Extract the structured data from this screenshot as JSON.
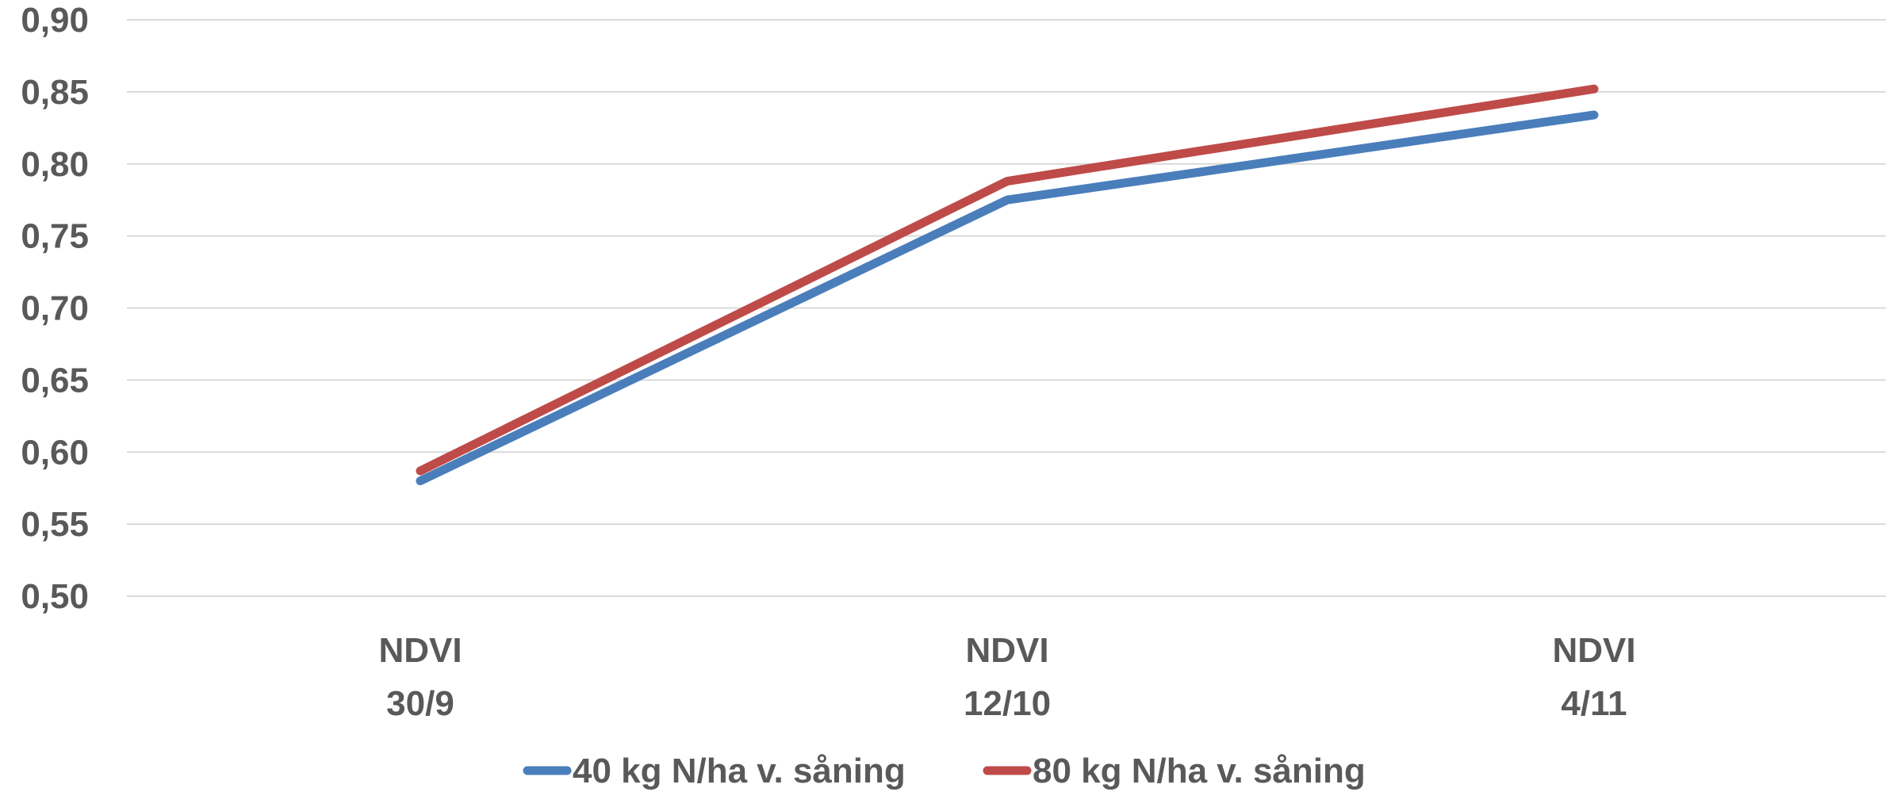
{
  "chart_data": {
    "type": "line",
    "title": "",
    "xlabel": "",
    "ylabel": "",
    "categories": [
      [
        "NDVI",
        "30/9"
      ],
      [
        "NDVI",
        "12/10"
      ],
      [
        "NDVI",
        "4/11"
      ]
    ],
    "series": [
      {
        "name": "40 kg N/ha v. såning",
        "color": "#4a7ebb",
        "values": [
          0.58,
          0.775,
          0.834
        ]
      },
      {
        "name": "80 kg N/ha v. såning",
        "color": "#be4b48",
        "values": [
          0.587,
          0.788,
          0.852
        ]
      }
    ],
    "ylim": [
      0.5,
      0.9
    ],
    "yticks": [
      "0,50",
      "0,55",
      "0,60",
      "0,65",
      "0,70",
      "0,75",
      "0,80",
      "0,85",
      "0,90"
    ],
    "grid": true,
    "legend_position": "bottom"
  }
}
